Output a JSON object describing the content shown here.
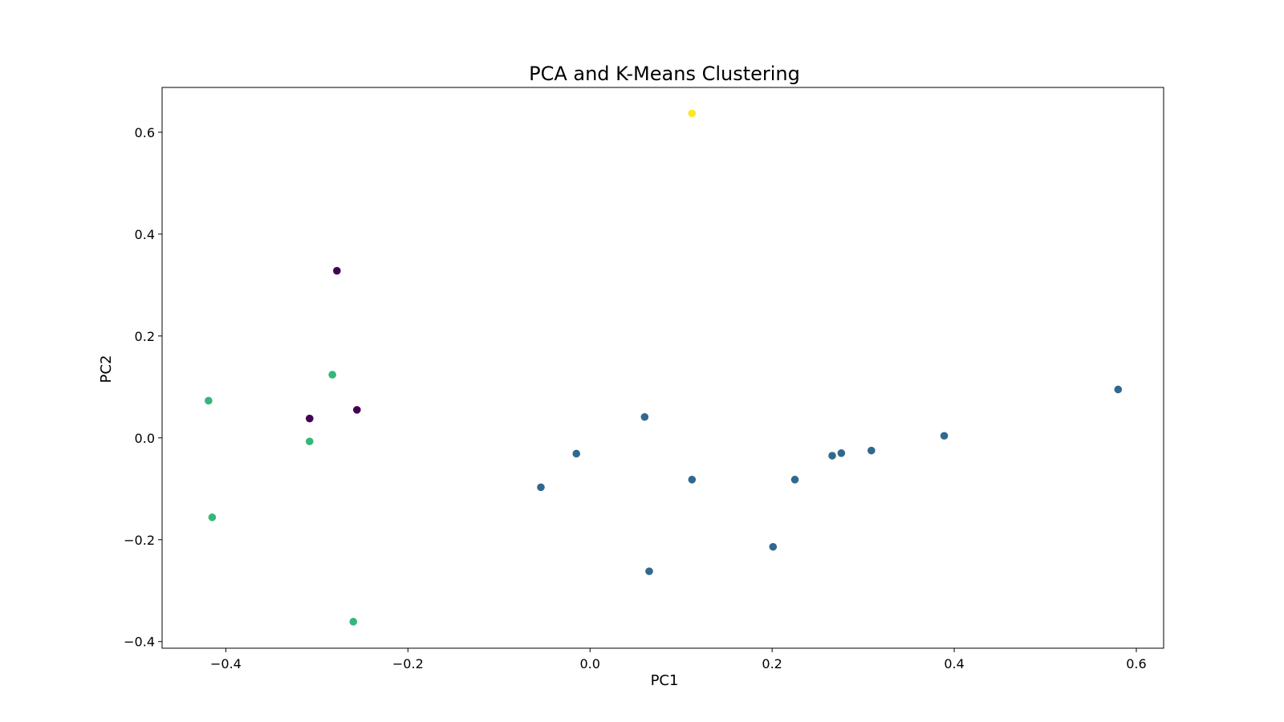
{
  "chart_data": {
    "type": "scatter",
    "title": "PCA and K-Means Clustering",
    "xlabel": "PC1",
    "ylabel": "PC2",
    "xlim": [
      -0.47,
      0.63
    ],
    "ylim": [
      -0.413,
      0.688
    ],
    "xticks": [
      -0.4,
      -0.2,
      0.0,
      0.2,
      0.4,
      0.6
    ],
    "xtick_labels": [
      "−0.4",
      "−0.2",
      "0.0",
      "0.2",
      "0.4",
      "0.6"
    ],
    "yticks": [
      -0.4,
      -0.2,
      0.0,
      0.2,
      0.4,
      0.6
    ],
    "ytick_labels": [
      "−0.4",
      "−0.2",
      "0.0",
      "0.2",
      "0.4",
      "0.6"
    ],
    "grid": false,
    "legend": "none",
    "cluster_colors": [
      "#440154",
      "#31688e",
      "#35b779",
      "#fde725"
    ],
    "points": [
      {
        "x": 0.112,
        "y": 0.637,
        "cluster": 3
      },
      {
        "x": -0.278,
        "y": 0.328,
        "cluster": 0
      },
      {
        "x": -0.308,
        "y": 0.038,
        "cluster": 0
      },
      {
        "x": -0.256,
        "y": 0.055,
        "cluster": 0
      },
      {
        "x": -0.283,
        "y": 0.124,
        "cluster": 2
      },
      {
        "x": -0.419,
        "y": 0.073,
        "cluster": 2
      },
      {
        "x": -0.308,
        "y": -0.007,
        "cluster": 2
      },
      {
        "x": -0.415,
        "y": -0.156,
        "cluster": 2
      },
      {
        "x": -0.26,
        "y": -0.361,
        "cluster": 2
      },
      {
        "x": 0.06,
        "y": 0.041,
        "cluster": 1
      },
      {
        "x": -0.015,
        "y": -0.031,
        "cluster": 1
      },
      {
        "x": -0.054,
        "y": -0.097,
        "cluster": 1
      },
      {
        "x": 0.112,
        "y": -0.082,
        "cluster": 1
      },
      {
        "x": 0.065,
        "y": -0.262,
        "cluster": 1
      },
      {
        "x": 0.201,
        "y": -0.214,
        "cluster": 1
      },
      {
        "x": 0.225,
        "y": -0.082,
        "cluster": 1
      },
      {
        "x": 0.266,
        "y": -0.035,
        "cluster": 1
      },
      {
        "x": 0.276,
        "y": -0.03,
        "cluster": 1
      },
      {
        "x": 0.309,
        "y": -0.025,
        "cluster": 1
      },
      {
        "x": 0.389,
        "y": 0.004,
        "cluster": 1
      },
      {
        "x": 0.58,
        "y": 0.095,
        "cluster": 1
      }
    ]
  }
}
